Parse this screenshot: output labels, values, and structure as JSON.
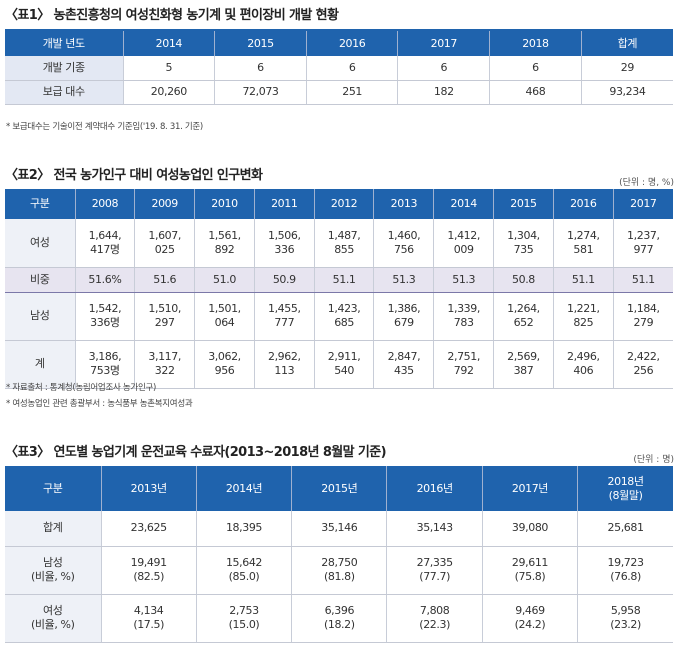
{
  "table1": {
    "caption": "〈표1〉 농촌진흥청의 여성친화형 농기계 및 편이장비 개발 현황",
    "headers": [
      "개발 년도",
      "2014",
      "2015",
      "2016",
      "2017",
      "2018",
      "합계"
    ],
    "rows": [
      [
        "개발 기종",
        "5",
        "6",
        "6",
        "6",
        "6",
        "29"
      ],
      [
        "보급 대수",
        "20,260",
        "72,073",
        "251",
        "182",
        "468",
        "93,234"
      ]
    ],
    "note": "* 보급대수는 기술이전 계약대수 기준임('19. 8. 31. 기준)"
  },
  "table2": {
    "caption": "〈표2〉 전국 농가인구 대비 여성농업인 인구변화",
    "unit": "(단위 : 명, %)",
    "headers": [
      "구분",
      "2008",
      "2009",
      "2010",
      "2011",
      "2012",
      "2013",
      "2014",
      "2015",
      "2016",
      "2017"
    ],
    "rows": [
      {
        "label": "여성",
        "cells": [
          [
            "1,644,",
            "417명"
          ],
          [
            "1,607,",
            "025"
          ],
          [
            "1,561,",
            "892"
          ],
          [
            "1,506,",
            "336"
          ],
          [
            "1,487,",
            "855"
          ],
          [
            "1,460,",
            "756"
          ],
          [
            "1,412,",
            "009"
          ],
          [
            "1,304,",
            "735"
          ],
          [
            "1,274,",
            "581"
          ],
          [
            "1,237,",
            "977"
          ]
        ]
      },
      {
        "label": "비중",
        "cells": [
          [
            "51.6%"
          ],
          [
            "51.6"
          ],
          [
            "51.0"
          ],
          [
            "50.9"
          ],
          [
            "51.1"
          ],
          [
            "51.3"
          ],
          [
            "51.3"
          ],
          [
            "50.8"
          ],
          [
            "51.1"
          ],
          [
            "51.1"
          ]
        ]
      },
      {
        "label": "남성",
        "cells": [
          [
            "1,542,",
            "336명"
          ],
          [
            "1,510,",
            "297"
          ],
          [
            "1,501,",
            "064"
          ],
          [
            "1,455,",
            "777"
          ],
          [
            "1,423,",
            "685"
          ],
          [
            "1,386,",
            "679"
          ],
          [
            "1,339,",
            "783"
          ],
          [
            "1,264,",
            "652"
          ],
          [
            "1,221,",
            "825"
          ],
          [
            "1,184,",
            "279"
          ]
        ]
      },
      {
        "label": "계",
        "cells": [
          [
            "3,186,",
            "753명"
          ],
          [
            "3,117,",
            "322"
          ],
          [
            "3,062,",
            "956"
          ],
          [
            "2,962,",
            "113"
          ],
          [
            "2,911,",
            "540"
          ],
          [
            "2,847,",
            "435"
          ],
          [
            "2,751,",
            "792"
          ],
          [
            "2,569,",
            "387"
          ],
          [
            "2,496,",
            "406"
          ],
          [
            "2,422,",
            "256"
          ]
        ]
      }
    ],
    "notes": [
      "* 자료출처 : 통계청(농림어업조사 농가인구)",
      "* 여성농업인 관련 총괄부서 : 농식품부 농촌복지여성과"
    ]
  },
  "table3": {
    "caption": "〈표3〉 연도별 농업기계 운전교육 수료자(2013~2018년 8월말 기준)",
    "unit": "(단위 : 명)",
    "headers": [
      [
        "구분"
      ],
      [
        "2013년"
      ],
      [
        "2014년"
      ],
      [
        "2015년"
      ],
      [
        "2016년"
      ],
      [
        "2017년"
      ],
      [
        "2018년",
        "(8월말)"
      ]
    ],
    "rows": [
      {
        "label": [
          "합계"
        ],
        "cells": [
          [
            "23,625"
          ],
          [
            "18,395"
          ],
          [
            "35,146"
          ],
          [
            "35,143"
          ],
          [
            "39,080"
          ],
          [
            "25,681"
          ]
        ]
      },
      {
        "label": [
          "남성",
          "(비율, %)"
        ],
        "cells": [
          [
            "19,491",
            "(82.5)"
          ],
          [
            "15,642",
            "(85.0)"
          ],
          [
            "28,750",
            "(81.8)"
          ],
          [
            "27,335",
            "(77.7)"
          ],
          [
            "29,611",
            "(75.8)"
          ],
          [
            "19,723",
            "(76.8)"
          ]
        ]
      },
      {
        "label": [
          "여성",
          "(비율, %)"
        ],
        "cells": [
          [
            "4,134",
            "(17.5)"
          ],
          [
            "2,753",
            "(15.0)"
          ],
          [
            "6,396",
            "(18.2)"
          ],
          [
            "7,808",
            "(22.3)"
          ],
          [
            "9,469",
            "(24.2)"
          ],
          [
            "5,958",
            "(23.2)"
          ]
        ]
      }
    ]
  }
}
